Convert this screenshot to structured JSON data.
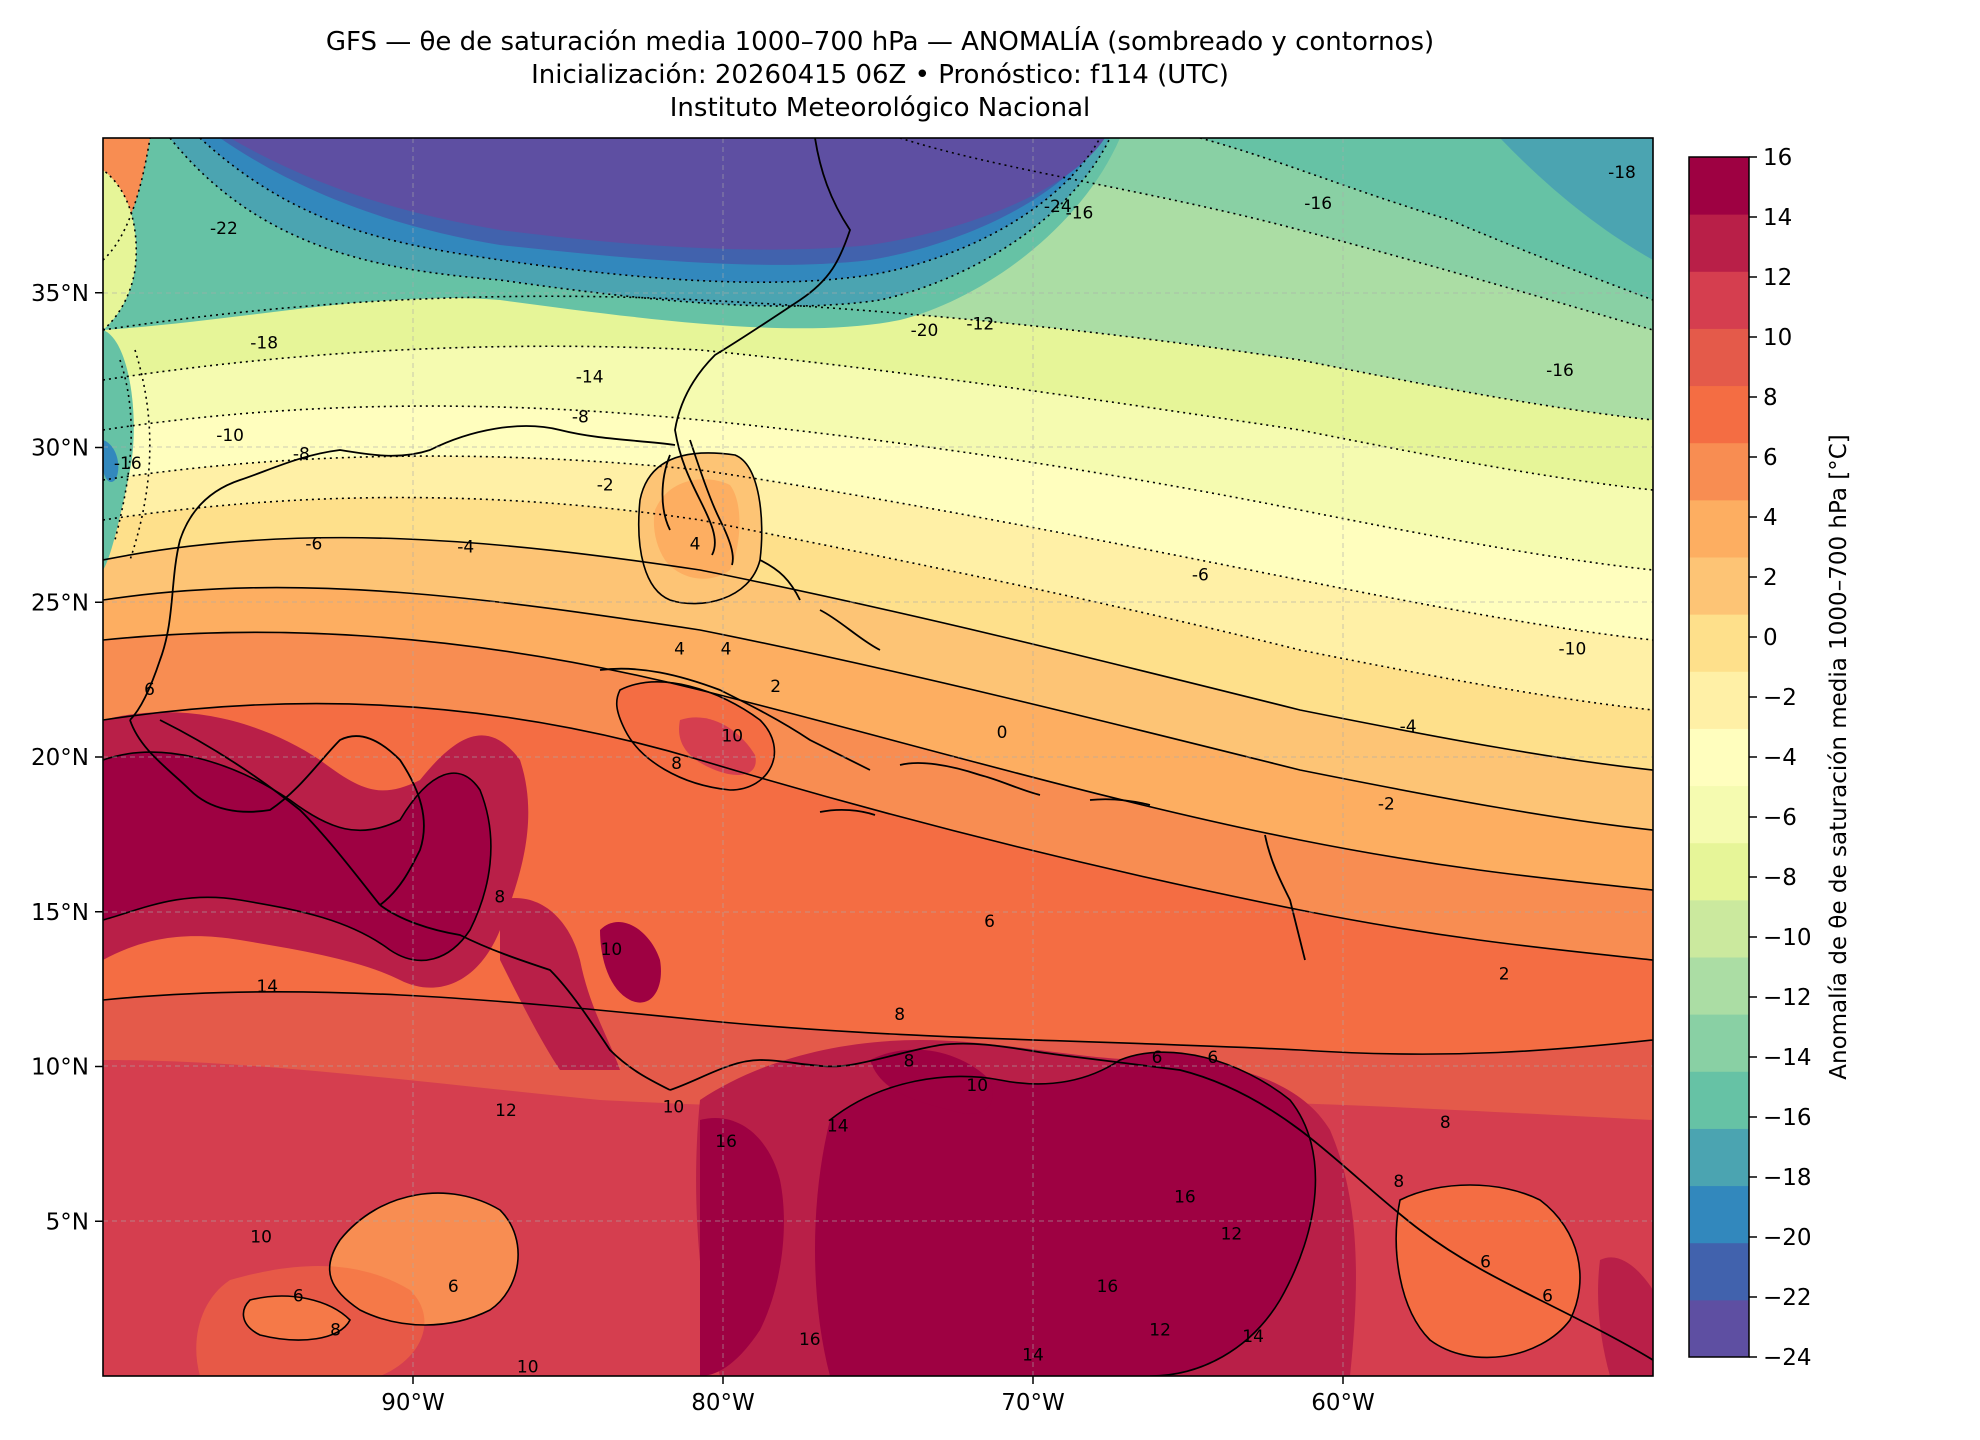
{
  "title": {
    "line1": "GFS — θe de saturación media 1000–700 hPa — ANOMALÍA (sombreado y contornos)",
    "line2": "Inicialización: 20260415 06Z   •   Pronóstico: f114 (UTC)",
    "line3": "Instituto Meteorológico Nacional"
  },
  "map": {
    "lon_range": [
      -100,
      -50
    ],
    "lat_range": [
      0,
      40
    ],
    "lon_ticks": [
      {
        "value": -90,
        "label": "90°W"
      },
      {
        "value": -80,
        "label": "80°W"
      },
      {
        "value": -70,
        "label": "70°W"
      },
      {
        "value": -60,
        "label": "60°W"
      }
    ],
    "lat_ticks": [
      {
        "value": 5,
        "label": "5°N"
      },
      {
        "value": 10,
        "label": "10°N"
      },
      {
        "value": 15,
        "label": "15°N"
      },
      {
        "value": 20,
        "label": "20°N"
      },
      {
        "value": 25,
        "label": "25°N"
      },
      {
        "value": 30,
        "label": "30°N"
      },
      {
        "value": 35,
        "label": "35°N"
      }
    ],
    "gridlines": true,
    "contour_labels": [
      {
        "text": "-24",
        "lon": -69.2,
        "lat": 37.8
      },
      {
        "text": "-16",
        "lon": -68.5,
        "lat": 37.6
      },
      {
        "text": "-16",
        "lon": -60.8,
        "lat": 37.9
      },
      {
        "text": "-18",
        "lon": -51.0,
        "lat": 38.9
      },
      {
        "text": "-22",
        "lon": -96.1,
        "lat": 37.1
      },
      {
        "text": "-18",
        "lon": -94.8,
        "lat": 33.4
      },
      {
        "text": "-20",
        "lon": -73.5,
        "lat": 33.8
      },
      {
        "text": "-12",
        "lon": -71.7,
        "lat": 34.0
      },
      {
        "text": "-16",
        "lon": -53.0,
        "lat": 32.5
      },
      {
        "text": "-14",
        "lon": -84.3,
        "lat": 32.3
      },
      {
        "text": "-8",
        "lon": -84.6,
        "lat": 31.0
      },
      {
        "text": "-10",
        "lon": -95.9,
        "lat": 30.4
      },
      {
        "text": "-16",
        "lon": -99.2,
        "lat": 29.5
      },
      {
        "text": "-8",
        "lon": -93.6,
        "lat": 29.8
      },
      {
        "text": "-2",
        "lon": -83.8,
        "lat": 28.8
      },
      {
        "text": "-6",
        "lon": -93.2,
        "lat": 26.9
      },
      {
        "text": "-4",
        "lon": -88.3,
        "lat": 26.8
      },
      {
        "text": "4",
        "lon": -80.9,
        "lat": 26.9
      },
      {
        "text": "-6",
        "lon": -64.6,
        "lat": 25.9
      },
      {
        "text": "-10",
        "lon": -52.6,
        "lat": 23.5
      },
      {
        "text": "4",
        "lon": -81.4,
        "lat": 23.5
      },
      {
        "text": "4",
        "lon": -79.9,
        "lat": 23.5
      },
      {
        "text": "2",
        "lon": -78.3,
        "lat": 22.3
      },
      {
        "text": "6",
        "lon": -98.5,
        "lat": 22.2
      },
      {
        "text": "0",
        "lon": -71.0,
        "lat": 20.8
      },
      {
        "text": "-4",
        "lon": -57.9,
        "lat": 21.0
      },
      {
        "text": "10",
        "lon": -79.7,
        "lat": 20.7
      },
      {
        "text": "8",
        "lon": -81.5,
        "lat": 19.8
      },
      {
        "text": "-2",
        "lon": -58.6,
        "lat": 18.5
      },
      {
        "text": "6",
        "lon": -71.4,
        "lat": 14.7
      },
      {
        "text": "8",
        "lon": -87.2,
        "lat": 15.5
      },
      {
        "text": "10",
        "lon": -83.6,
        "lat": 13.8
      },
      {
        "text": "14",
        "lon": -94.7,
        "lat": 12.6
      },
      {
        "text": "2",
        "lon": -54.8,
        "lat": 13.0
      },
      {
        "text": "8",
        "lon": -74.3,
        "lat": 11.7
      },
      {
        "text": "6",
        "lon": -66.0,
        "lat": 10.3
      },
      {
        "text": "6",
        "lon": -64.2,
        "lat": 10.3
      },
      {
        "text": "8",
        "lon": -74.0,
        "lat": 10.2
      },
      {
        "text": "10",
        "lon": -71.8,
        "lat": 9.4
      },
      {
        "text": "10",
        "lon": -81.6,
        "lat": 8.7
      },
      {
        "text": "12",
        "lon": -87.0,
        "lat": 8.6
      },
      {
        "text": "16",
        "lon": -79.9,
        "lat": 7.6
      },
      {
        "text": "14",
        "lon": -76.3,
        "lat": 8.1
      },
      {
        "text": "8",
        "lon": -56.7,
        "lat": 8.2
      },
      {
        "text": "8",
        "lon": -58.2,
        "lat": 6.3
      },
      {
        "text": "16",
        "lon": -65.1,
        "lat": 5.8
      },
      {
        "text": "12",
        "lon": -63.6,
        "lat": 4.6
      },
      {
        "text": "10",
        "lon": -94.9,
        "lat": 4.5
      },
      {
        "text": "16",
        "lon": -67.6,
        "lat": 2.9
      },
      {
        "text": "6",
        "lon": -93.7,
        "lat": 2.6
      },
      {
        "text": "6",
        "lon": -88.7,
        "lat": 2.9
      },
      {
        "text": "6",
        "lon": -55.4,
        "lat": 3.7
      },
      {
        "text": "6",
        "lon": -53.4,
        "lat": 2.6
      },
      {
        "text": "8",
        "lon": -92.5,
        "lat": 1.5
      },
      {
        "text": "12",
        "lon": -65.9,
        "lat": 1.5
      },
      {
        "text": "14",
        "lon": -62.9,
        "lat": 1.3
      },
      {
        "text": "10",
        "lon": -86.3,
        "lat": 0.3
      },
      {
        "text": "14",
        "lon": -70.0,
        "lat": 0.7
      },
      {
        "text": "16",
        "lon": -77.2,
        "lat": 1.2
      }
    ]
  },
  "colorbar": {
    "label": "Anomalía de θe de saturación media 1000–700 hPa [°C]",
    "levels": [
      -24,
      -22,
      -20,
      -18,
      -16,
      -14,
      -12,
      -10,
      -8,
      -6,
      -4,
      -2,
      0,
      2,
      4,
      6,
      8,
      10,
      12,
      14,
      16
    ],
    "tick_labels": [
      "−24",
      "−22",
      "−20",
      "−18",
      "−16",
      "−14",
      "−12",
      "−10",
      "−8",
      "−6",
      "−4",
      "−2",
      "0",
      "2",
      "4",
      "6",
      "8",
      "10",
      "12",
      "14",
      "16"
    ],
    "colors": [
      "#5e4fa2",
      "#4162ad",
      "#3288bd",
      "#4ba4b1",
      "#66c2a5",
      "#89d0a4",
      "#abdda4",
      "#cbe99e",
      "#e6f598",
      "#f5fbb0",
      "#fffebe",
      "#fff0a6",
      "#fee08b",
      "#fdc475",
      "#fdae61",
      "#f88d52",
      "#f46d43",
      "#e45a4a",
      "#d53e4f",
      "#b91f48",
      "#9e0142"
    ]
  }
}
